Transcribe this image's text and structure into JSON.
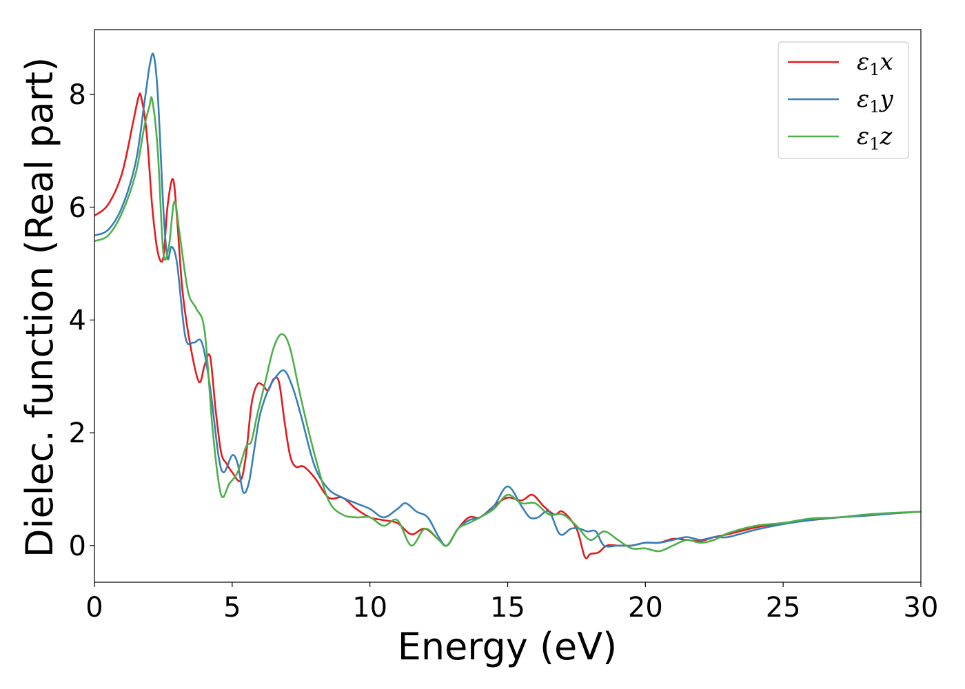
{
  "chart_data": {
    "type": "line",
    "xlabel": "Energy (eV)",
    "ylabel": "Dielec. function (Real part)",
    "xlim": [
      0,
      30
    ],
    "ylim": [
      -0.65,
      9.15
    ],
    "xticks": [
      0,
      5,
      10,
      15,
      20,
      25,
      30
    ],
    "xtick_labels": [
      "0",
      "5",
      "10",
      "15",
      "20",
      "25",
      "30"
    ],
    "yticks": [
      0,
      2,
      4,
      6,
      8
    ],
    "ytick_labels": [
      "0",
      "2",
      "4",
      "6",
      "8"
    ],
    "grid": false,
    "legend_position": "top-right",
    "series": [
      {
        "name": "ε1x",
        "legend": {
          "symbol": "ε",
          "sub": "1",
          "axis": "x"
        },
        "color": "#e41a1c",
        "x": [
          0,
          0.5,
          1.0,
          1.4,
          1.6,
          1.7,
          1.9,
          2.1,
          2.3,
          2.5,
          2.65,
          2.85,
          3.0,
          3.2,
          3.5,
          3.8,
          4.0,
          4.2,
          4.4,
          4.6,
          4.8,
          5.0,
          5.3,
          5.5,
          5.7,
          5.9,
          6.1,
          6.3,
          6.5,
          6.7,
          6.9,
          7.1,
          7.3,
          7.6,
          8.0,
          8.5,
          9.0,
          9.5,
          10.0,
          10.5,
          11.0,
          11.5,
          12.0,
          12.5,
          12.8,
          13.2,
          13.6,
          14.0,
          14.5,
          15.0,
          15.5,
          15.9,
          16.3,
          16.7,
          17.0,
          17.5,
          17.8,
          18.0,
          18.3,
          18.6,
          19.0,
          19.5,
          20.0,
          20.5,
          21.0,
          21.5,
          22.0,
          22.5,
          23.0,
          24.0,
          25.0,
          26.0,
          27.0,
          28.0,
          29.0,
          30.0
        ],
        "values": [
          5.85,
          6.05,
          6.6,
          7.5,
          7.95,
          7.95,
          7.3,
          6.0,
          5.2,
          5.1,
          6.0,
          6.5,
          5.8,
          4.5,
          3.5,
          2.9,
          3.2,
          3.35,
          2.4,
          1.65,
          1.45,
          1.3,
          1.15,
          1.6,
          2.5,
          2.85,
          2.85,
          2.75,
          2.95,
          2.9,
          2.2,
          1.6,
          1.4,
          1.4,
          1.2,
          0.85,
          0.85,
          0.65,
          0.5,
          0.45,
          0.4,
          0.2,
          0.3,
          0.1,
          0.0,
          0.3,
          0.5,
          0.5,
          0.7,
          0.85,
          0.8,
          0.9,
          0.7,
          0.55,
          0.6,
          0.3,
          -0.2,
          -0.15,
          -0.12,
          0.0,
          0.0,
          0.0,
          0.05,
          0.05,
          0.12,
          0.1,
          0.08,
          0.15,
          0.2,
          0.32,
          0.4,
          0.45,
          0.5,
          0.53,
          0.57,
          0.6
        ]
      },
      {
        "name": "ε1y",
        "legend": {
          "symbol": "ε",
          "sub": "1",
          "axis": "y"
        },
        "color": "#377eb8",
        "x": [
          0,
          0.5,
          1.0,
          1.5,
          1.8,
          2.0,
          2.15,
          2.3,
          2.5,
          2.65,
          2.8,
          3.0,
          3.3,
          3.6,
          3.9,
          4.2,
          4.5,
          4.7,
          5.0,
          5.2,
          5.4,
          5.6,
          5.8,
          6.0,
          6.3,
          6.6,
          6.9,
          7.2,
          7.5,
          8.0,
          8.5,
          9.0,
          9.5,
          10.0,
          10.5,
          11.0,
          11.3,
          11.7,
          12.1,
          12.5,
          12.8,
          13.2,
          13.6,
          14.0,
          14.5,
          15.0,
          15.5,
          15.8,
          16.1,
          16.5,
          16.9,
          17.3,
          17.6,
          17.9,
          18.2,
          18.5,
          19.0,
          19.5,
          20.0,
          20.5,
          21.0,
          21.5,
          22.0,
          22.5,
          23.0,
          24.0,
          25.0,
          26.0,
          27.0,
          28.0,
          29.0,
          30.0
        ],
        "values": [
          5.5,
          5.6,
          6.0,
          6.8,
          7.8,
          8.5,
          8.7,
          8.0,
          6.0,
          5.1,
          5.3,
          5.0,
          3.7,
          3.6,
          3.6,
          2.8,
          1.6,
          1.3,
          1.6,
          1.45,
          0.95,
          1.1,
          1.7,
          2.3,
          2.75,
          3.0,
          3.1,
          2.8,
          2.3,
          1.4,
          1.0,
          0.85,
          0.75,
          0.65,
          0.5,
          0.65,
          0.75,
          0.6,
          0.5,
          0.15,
          0.0,
          0.3,
          0.45,
          0.5,
          0.7,
          1.05,
          0.7,
          0.5,
          0.5,
          0.6,
          0.2,
          0.3,
          0.3,
          0.25,
          0.25,
          0.0,
          0.0,
          0.0,
          0.05,
          0.05,
          0.1,
          0.15,
          0.1,
          0.15,
          0.15,
          0.28,
          0.38,
          0.45,
          0.5,
          0.53,
          0.57,
          0.6
        ]
      },
      {
        "name": "ε1z",
        "legend": {
          "symbol": "ε",
          "sub": "1",
          "axis": "z"
        },
        "color": "#4daf4a",
        "x": [
          0,
          0.5,
          1.0,
          1.5,
          1.8,
          2.0,
          2.1,
          2.3,
          2.5,
          2.7,
          2.9,
          3.1,
          3.4,
          3.7,
          4.0,
          4.3,
          4.6,
          4.9,
          5.2,
          5.5,
          5.7,
          5.9,
          6.2,
          6.5,
          6.8,
          7.1,
          7.5,
          8.0,
          8.5,
          9.0,
          9.5,
          10.0,
          10.5,
          11.0,
          11.5,
          12.0,
          12.5,
          12.8,
          13.2,
          13.6,
          14.0,
          14.5,
          15.0,
          15.5,
          16.0,
          16.5,
          17.0,
          17.5,
          18.0,
          18.5,
          19.0,
          19.5,
          20.0,
          20.5,
          21.0,
          21.5,
          22.0,
          22.5,
          23.0,
          24.0,
          25.0,
          26.0,
          27.0,
          28.0,
          29.0,
          30.0
        ],
        "values": [
          5.4,
          5.5,
          5.9,
          6.6,
          7.4,
          7.8,
          7.9,
          7.0,
          5.2,
          5.3,
          6.1,
          5.5,
          4.5,
          4.2,
          3.8,
          2.0,
          0.9,
          1.1,
          1.3,
          1.75,
          1.85,
          2.3,
          2.9,
          3.5,
          3.75,
          3.5,
          2.6,
          1.6,
          0.8,
          0.55,
          0.5,
          0.5,
          0.35,
          0.45,
          0.0,
          0.3,
          0.1,
          0.0,
          0.3,
          0.4,
          0.5,
          0.65,
          0.9,
          0.75,
          0.75,
          0.55,
          0.55,
          0.35,
          0.1,
          0.25,
          0.1,
          -0.05,
          -0.05,
          -0.1,
          0.0,
          0.1,
          0.05,
          0.1,
          0.22,
          0.35,
          0.4,
          0.48,
          0.5,
          0.55,
          0.58,
          0.6
        ]
      }
    ]
  }
}
